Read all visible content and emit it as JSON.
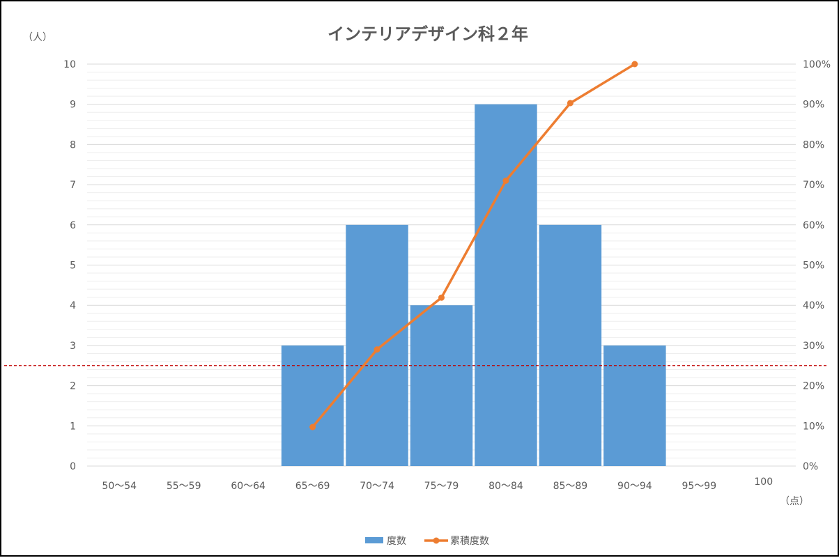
{
  "chart_data": {
    "type": "bar",
    "title": "インテリアデザイン科２年",
    "y_unit": "（人）",
    "x_unit": "（点）",
    "categories": [
      "50～54",
      "55～59",
      "60～64",
      "65～69",
      "70～74",
      "75～79",
      "80～84",
      "85～89",
      "90～94",
      "95～99",
      "100"
    ],
    "series": [
      {
        "name": "度数",
        "type": "bar",
        "values": [
          0,
          0,
          0,
          3,
          6,
          4,
          9,
          6,
          3,
          0,
          0
        ],
        "color": "#5B9BD5"
      },
      {
        "name": "累積度数",
        "type": "line",
        "values": [
          null,
          null,
          null,
          0.097,
          0.29,
          0.419,
          0.71,
          0.903,
          1.0,
          null,
          null
        ],
        "color": "#ED7D31"
      }
    ],
    "ylim": [
      0,
      10
    ],
    "y_ticks": [
      "0",
      "1",
      "2",
      "3",
      "4",
      "5",
      "6",
      "7",
      "8",
      "9",
      "10"
    ],
    "y2lim": [
      0,
      1
    ],
    "y2_ticks": [
      "0%",
      "10%",
      "20%",
      "30%",
      "40%",
      "50%",
      "60%",
      "70%",
      "80%",
      "90%",
      "100%"
    ],
    "reference_line": {
      "value": 2.5,
      "style": "dashed",
      "color": "#C00000"
    },
    "grid": true,
    "legend": "bottom"
  }
}
